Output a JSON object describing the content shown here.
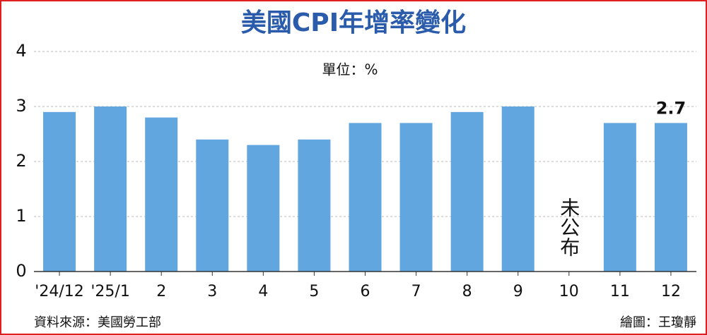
{
  "chart_data": {
    "type": "bar",
    "title": "美國CPI年增率變化",
    "subtitle": "單位：%",
    "categories": [
      "'24/12",
      "'25/1",
      "2",
      "3",
      "4",
      "5",
      "6",
      "7",
      "8",
      "9",
      "10",
      "11",
      "12"
    ],
    "values": [
      2.9,
      3.0,
      2.8,
      2.4,
      2.3,
      2.4,
      2.7,
      2.7,
      2.9,
      3.0,
      null,
      2.7,
      2.7
    ],
    "value_labels": [
      null,
      null,
      null,
      null,
      null,
      null,
      null,
      null,
      null,
      null,
      null,
      null,
      "2.7"
    ],
    "color": "#62a6df",
    "ylim": [
      0,
      4
    ],
    "yticks": [
      0,
      1,
      2,
      3,
      4
    ],
    "grid": true,
    "annotations": [
      {
        "text": "未公布",
        "category": "10"
      }
    ],
    "source": "資料來源：美國勞工部",
    "credit": "繪圖：王瓊靜"
  }
}
